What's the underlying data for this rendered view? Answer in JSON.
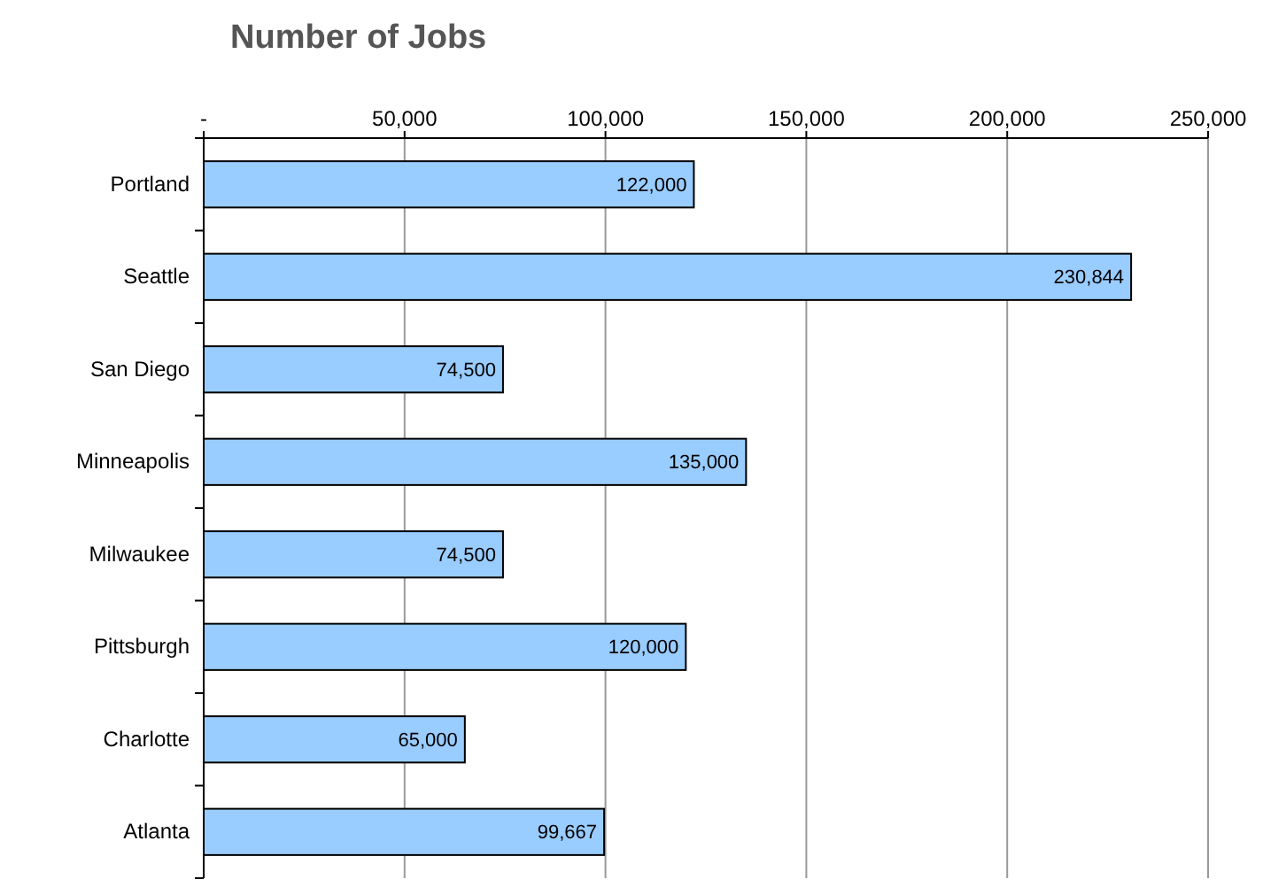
{
  "chart_data": {
    "type": "bar",
    "orientation": "horizontal",
    "title": "Number of Jobs",
    "categories": [
      "Portland",
      "Seattle",
      "San Diego",
      "Minneapolis",
      "Milwaukee",
      "Pittsburgh",
      "Charlotte",
      "Atlanta"
    ],
    "values": [
      122000,
      230844,
      74500,
      135000,
      74500,
      120000,
      65000,
      99667
    ],
    "value_labels": [
      "122,000",
      "230,844",
      "74,500",
      "135,000",
      "74,500",
      "120,000",
      "65,000",
      "99,667"
    ],
    "color": "#99ccff",
    "grid": "x",
    "xlim": [
      0,
      250000
    ],
    "xticks": [
      {
        "value": 0,
        "label": "-"
      },
      {
        "value": 50000,
        "label": "50,000"
      },
      {
        "value": 100000,
        "label": "100,000"
      },
      {
        "value": 150000,
        "label": "150,000"
      },
      {
        "value": 200000,
        "label": "200,000"
      },
      {
        "value": 250000,
        "label": "250,000"
      }
    ]
  }
}
